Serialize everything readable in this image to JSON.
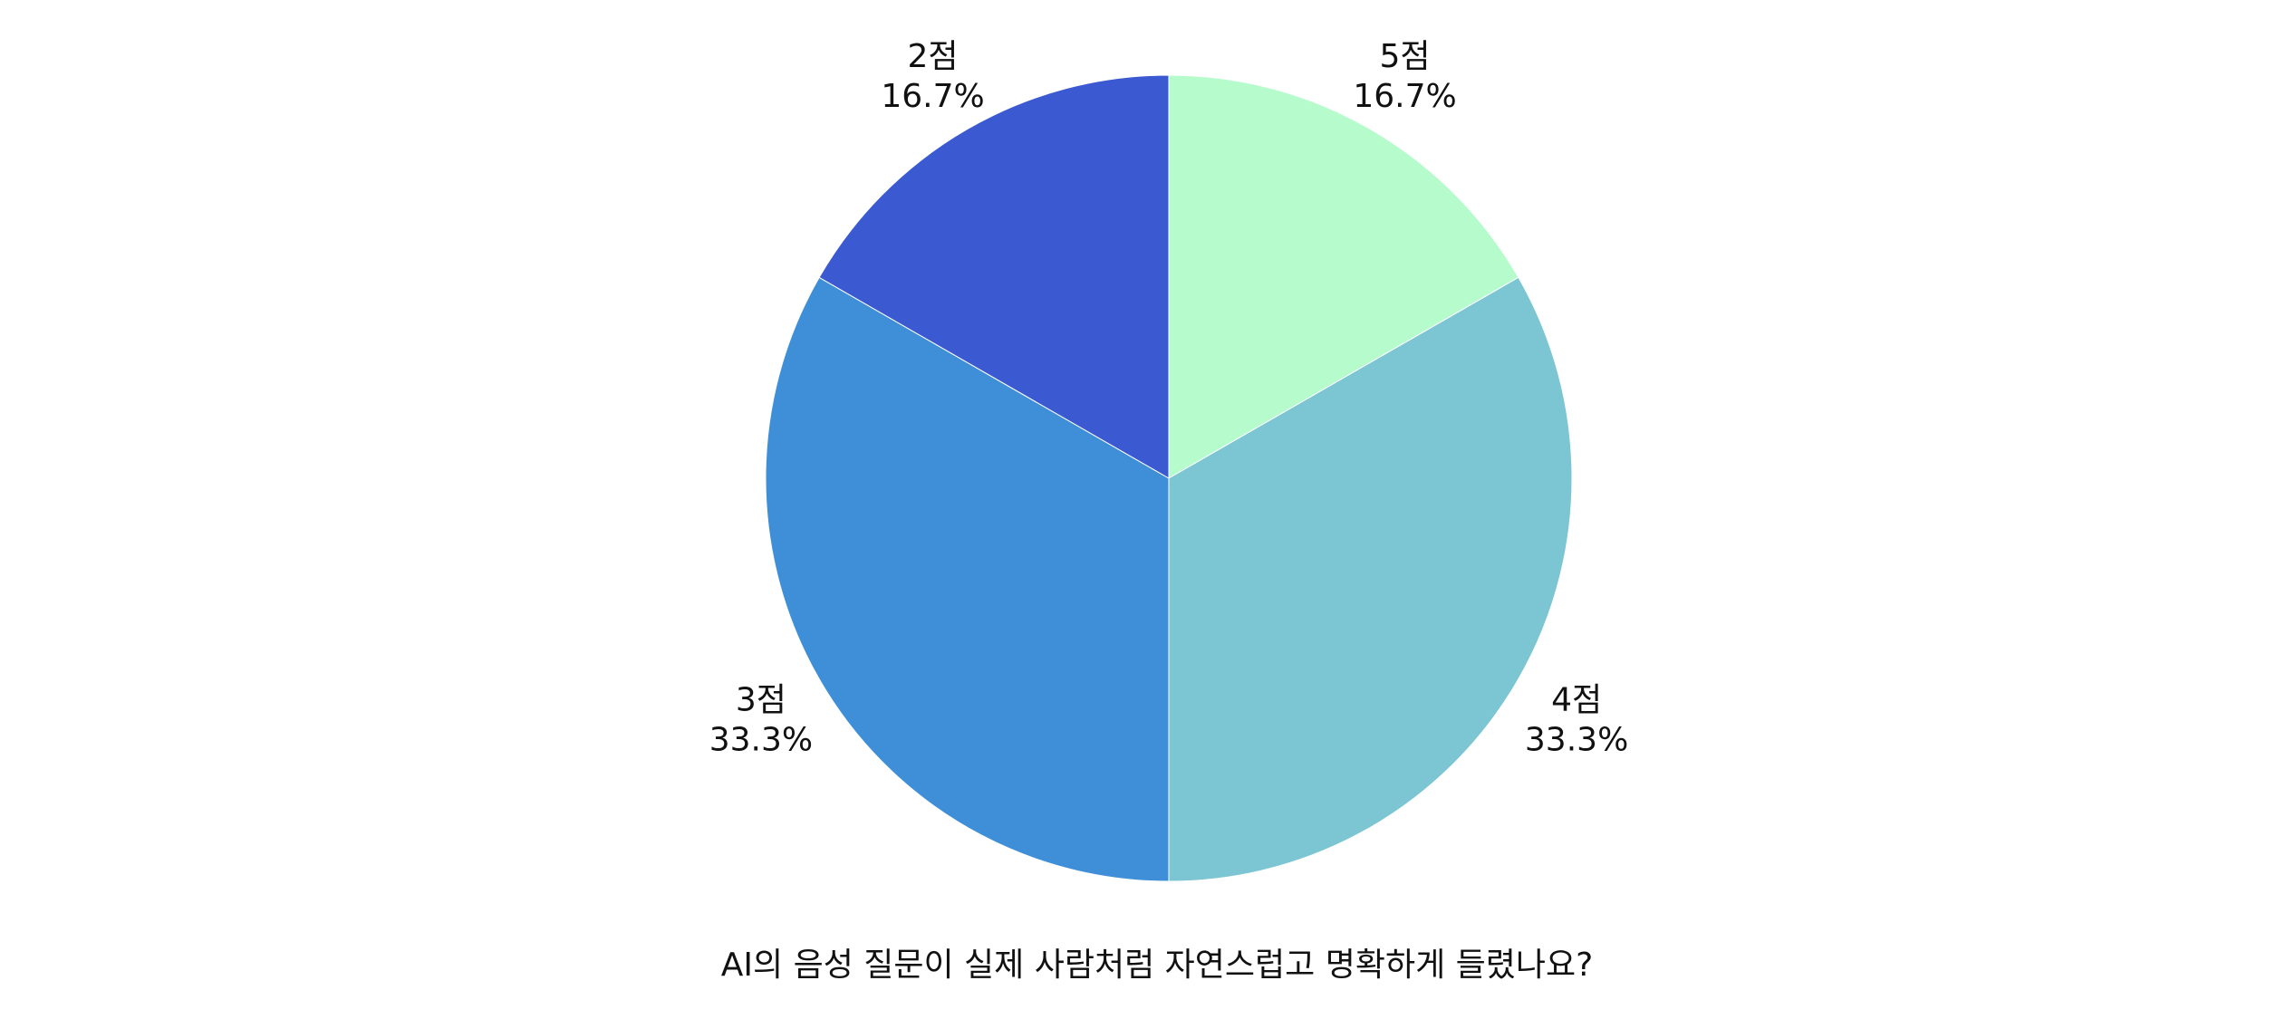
{
  "chart_data": {
    "type": "pie",
    "title": "AI의 음성 질문이 실제 사람처럼 자연스럽고 명확하게 들렸나요?",
    "start": "12 o'clock",
    "direction": "clockwise",
    "slices": [
      {
        "label": "5점",
        "value": 16.7,
        "value_label": "16.7%",
        "color": "#b5fbcb"
      },
      {
        "label": "4점",
        "value": 33.3,
        "value_label": "33.3%",
        "color": "#7bc6d2"
      },
      {
        "label": "3점",
        "value": 33.3,
        "value_label": "33.3%",
        "color": "#3f8fd8"
      },
      {
        "label": "2점",
        "value": 16.7,
        "value_label": "16.7%",
        "color": "#3b5ad2"
      }
    ]
  }
}
